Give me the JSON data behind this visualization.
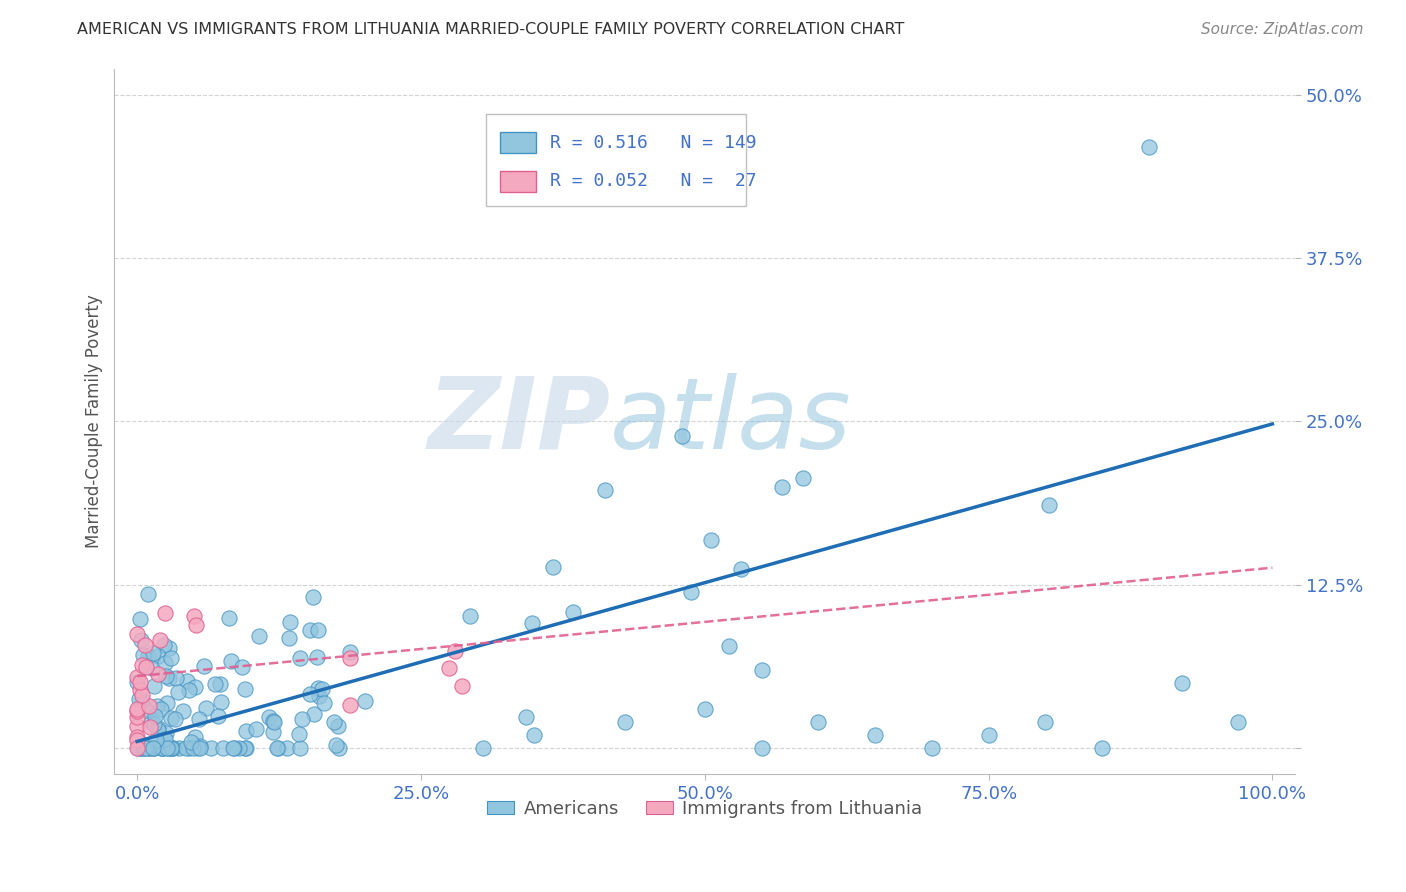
{
  "title": "AMERICAN VS IMMIGRANTS FROM LITHUANIA MARRIED-COUPLE FAMILY POVERTY CORRELATION CHART",
  "source": "Source: ZipAtlas.com",
  "ylabel": "Married-Couple Family Poverty",
  "xlim": [
    -0.02,
    1.02
  ],
  "ylim": [
    -0.02,
    0.52
  ],
  "yticks": [
    0.0,
    0.125,
    0.25,
    0.375,
    0.5
  ],
  "ytick_labels": [
    "",
    "12.5%",
    "25.0%",
    "37.5%",
    "50.0%"
  ],
  "xticks": [
    0.0,
    0.25,
    0.5,
    0.75,
    1.0
  ],
  "xtick_labels": [
    "0.0%",
    "25.0%",
    "50.0%",
    "75.0%",
    "100.0%"
  ],
  "americans_color": "#92c5de",
  "americans_edge_color": "#4393c3",
  "lithuania_color": "#f4a9c0",
  "lithuania_edge_color": "#e06090",
  "americans_line_color": "#1f6eb5",
  "lithuania_line_color": "#e06090",
  "watermark_color": "#d0e4f0",
  "background_color": "#ffffff",
  "grid_color": "#d0d0d0",
  "tick_color": "#4472c4",
  "ylabel_color": "#555555",
  "legend_text_color": "#4472c4",
  "title_color": "#333333",
  "source_color": "#888888",
  "americans_R": 0.516,
  "americans_N": 149,
  "lithuania_R": 0.052,
  "lithuania_N": 27,
  "am_line_x0": 0.0,
  "am_line_y0": 0.005,
  "am_line_x1": 1.0,
  "am_line_y1": 0.248,
  "lt_line_x0": 0.0,
  "lt_line_y0": 0.055,
  "lt_line_x1": 1.0,
  "lt_line_y1": 0.138
}
